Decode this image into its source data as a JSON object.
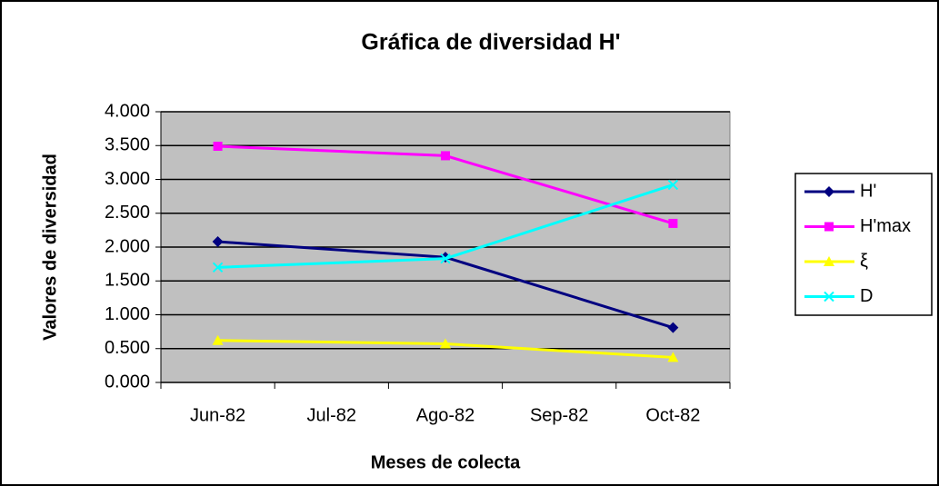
{
  "chart_data": {
    "type": "line",
    "title": "Gráfica de diversidad H'",
    "x_label": "Meses de colecta",
    "y_label": "Valores de diversidad",
    "categories": [
      "Jun-82",
      "Jul-82",
      "Ago-82",
      "Sep-82",
      "Oct-82"
    ],
    "connect_gaps": true,
    "series": [
      {
        "name": "H'",
        "color": "#000080",
        "marker": "diamond",
        "values": [
          2.08,
          null,
          1.85,
          null,
          0.81
        ]
      },
      {
        "name": "H'max",
        "color": "#ff00ff",
        "marker": "square",
        "values": [
          3.49,
          null,
          3.35,
          null,
          2.35
        ]
      },
      {
        "name": "ξ",
        "color": "#ffff00",
        "marker": "triangle",
        "values": [
          0.62,
          null,
          0.57,
          null,
          0.37
        ]
      },
      {
        "name": "D",
        "color": "#00ffff",
        "marker": "x",
        "values": [
          1.7,
          null,
          1.83,
          null,
          2.92
        ]
      }
    ],
    "ylim": [
      0,
      4
    ],
    "yticks": [
      {
        "value": 0,
        "label": "0.000"
      },
      {
        "value": 0.5,
        "label": "0.500"
      },
      {
        "value": 1,
        "label": "1.000"
      },
      {
        "value": 1.5,
        "label": "1.500"
      },
      {
        "value": 2,
        "label": "2.000"
      },
      {
        "value": 2.5,
        "label": "2.500"
      },
      {
        "value": 3,
        "label": "3.000"
      },
      {
        "value": 3.5,
        "label": "3.500"
      },
      {
        "value": 4,
        "label": "4.000"
      }
    ],
    "grid": true,
    "plot_background": "#c0c0c0",
    "legend": "right"
  }
}
